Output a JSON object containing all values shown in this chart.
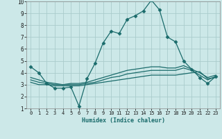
{
  "title": "",
  "xlabel": "Humidex (Indice chaleur)",
  "ylabel": "",
  "xlim": [
    -0.5,
    23.5
  ],
  "ylim": [
    1,
    10
  ],
  "xticks": [
    0,
    1,
    2,
    3,
    4,
    5,
    6,
    7,
    8,
    9,
    10,
    11,
    12,
    13,
    14,
    15,
    16,
    17,
    18,
    19,
    20,
    21,
    22,
    23
  ],
  "yticks": [
    1,
    2,
    3,
    4,
    5,
    6,
    7,
    8,
    9,
    10
  ],
  "background_color": "#cce8e8",
  "grid_color": "#aacccc",
  "line_color": "#1a6b6b",
  "series": [
    {
      "x": [
        0,
        1,
        2,
        3,
        4,
        5,
        6,
        7,
        8,
        9,
        10,
        11,
        12,
        13,
        14,
        15,
        16,
        17,
        18,
        19,
        20,
        21,
        22,
        23
      ],
      "y": [
        4.5,
        4.0,
        3.1,
        2.7,
        2.7,
        2.8,
        1.2,
        3.5,
        4.8,
        6.5,
        7.5,
        7.3,
        8.5,
        8.8,
        9.2,
        10.1,
        9.3,
        7.0,
        6.6,
        5.0,
        4.3,
        3.6,
        3.1,
        3.7
      ],
      "marker": "D",
      "markersize": 2.5,
      "linewidth": 0.9
    },
    {
      "x": [
        0,
        1,
        2,
        3,
        4,
        5,
        6,
        7,
        8,
        9,
        10,
        11,
        12,
        13,
        14,
        15,
        16,
        17,
        18,
        19,
        20,
        21,
        22,
        23
      ],
      "y": [
        3.2,
        3.0,
        3.0,
        2.9,
        2.9,
        2.9,
        2.9,
        3.0,
        3.1,
        3.2,
        3.3,
        3.4,
        3.5,
        3.6,
        3.7,
        3.8,
        3.8,
        3.8,
        3.8,
        3.9,
        4.0,
        4.1,
        3.5,
        3.6
      ],
      "marker": null,
      "markersize": 0,
      "linewidth": 0.9
    },
    {
      "x": [
        0,
        1,
        2,
        3,
        4,
        5,
        6,
        7,
        8,
        9,
        10,
        11,
        12,
        13,
        14,
        15,
        16,
        17,
        18,
        19,
        20,
        21,
        22,
        23
      ],
      "y": [
        3.4,
        3.2,
        3.1,
        3.0,
        3.0,
        3.0,
        3.0,
        3.1,
        3.2,
        3.4,
        3.6,
        3.7,
        3.9,
        4.0,
        4.1,
        4.2,
        4.2,
        4.2,
        4.2,
        4.4,
        4.2,
        3.8,
        3.4,
        3.7
      ],
      "marker": null,
      "markersize": 0,
      "linewidth": 0.9
    },
    {
      "x": [
        0,
        1,
        2,
        3,
        4,
        5,
        6,
        7,
        8,
        9,
        10,
        11,
        12,
        13,
        14,
        15,
        16,
        17,
        18,
        19,
        20,
        21,
        22,
        23
      ],
      "y": [
        3.6,
        3.4,
        3.2,
        3.1,
        3.0,
        3.1,
        3.1,
        3.2,
        3.4,
        3.6,
        3.8,
        4.0,
        4.2,
        4.3,
        4.4,
        4.5,
        4.5,
        4.4,
        4.4,
        4.6,
        4.3,
        4.0,
        3.6,
        3.8
      ],
      "marker": null,
      "markersize": 0,
      "linewidth": 0.9
    }
  ]
}
